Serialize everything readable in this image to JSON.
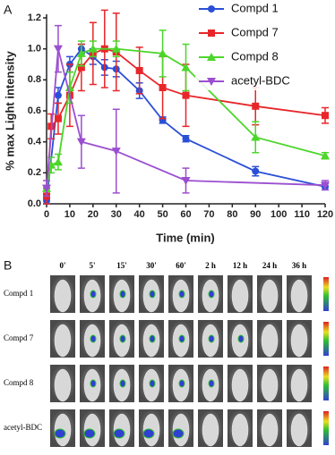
{
  "chart_data": {
    "type": "line",
    "panel_label": "A",
    "xlabel": "Time (min)",
    "ylabel": "% max Light intensity",
    "xlim": [
      0,
      120
    ],
    "xticks": [
      0,
      10,
      20,
      30,
      40,
      50,
      60,
      70,
      80,
      90,
      100,
      110,
      120
    ],
    "ylim": [
      0,
      1.2
    ],
    "yticks": [
      {
        "value": 0,
        "label": "0.0"
      },
      0.2,
      0.4,
      0.6,
      0.8,
      {
        "value": 1,
        "label": "1.0"
      },
      1.2
    ],
    "legend": "upper right",
    "series": [
      {
        "name": "Compd 1",
        "color": "#2a4fd6",
        "marker": "circle",
        "x": [
          0,
          5,
          10,
          15,
          20,
          25,
          30,
          40,
          50,
          60,
          90,
          120
        ],
        "values": [
          0.02,
          0.7,
          0.9,
          1.0,
          0.95,
          0.88,
          0.87,
          0.73,
          0.54,
          0.42,
          0.21,
          0.11
        ],
        "errors": [
          0.02,
          0.05,
          0.05,
          0.03,
          0.05,
          0.05,
          0.05,
          0.05,
          0.02,
          0.02,
          0.03,
          0.02
        ]
      },
      {
        "name": "Compd 7",
        "color": "#e8262a",
        "marker": "square",
        "x": [
          0,
          2,
          5,
          10,
          15,
          20,
          25,
          30,
          40,
          50,
          60,
          90,
          120
        ],
        "values": [
          0.05,
          0.5,
          0.55,
          0.7,
          0.88,
          0.97,
          1.0,
          0.98,
          0.86,
          0.75,
          0.7,
          0.63,
          0.57
        ],
        "errors": [
          0.05,
          0.08,
          0.1,
          0.2,
          0.15,
          0.2,
          0.25,
          0.25,
          0.15,
          0.2,
          0.2,
          0.12,
          0.05
        ]
      },
      {
        "name": "Compd 8",
        "color": "#4cd62a",
        "marker": "triangle",
        "x": [
          0,
          2,
          5,
          10,
          15,
          20,
          30,
          50,
          60,
          90,
          120
        ],
        "values": [
          0.1,
          0.25,
          0.27,
          0.75,
          0.97,
          1.0,
          1.0,
          0.97,
          0.88,
          0.43,
          0.31
        ],
        "errors": [
          0.02,
          0.05,
          0.05,
          0.1,
          0.08,
          0.05,
          0.05,
          0.15,
          0.15,
          0.1,
          0.02
        ]
      },
      {
        "name": "acetyl-BDC",
        "color": "#9b4fd0",
        "marker": "triangle-down",
        "x": [
          0,
          5,
          15,
          30,
          60,
          120
        ],
        "values": [
          0.1,
          1.0,
          0.4,
          0.34,
          0.15,
          0.12
        ],
        "errors": [
          0.05,
          0.15,
          0.17,
          0.27,
          0.08,
          0.03
        ]
      }
    ]
  },
  "panel_b": {
    "label": "B",
    "columns": [
      "0'",
      "5'",
      "15'",
      "30'",
      "60'",
      "2 h",
      "12 h",
      "24 h",
      "36 h"
    ],
    "rows": [
      "Compd 1",
      "Compd 7",
      "Compd 8",
      "acetyl-BDC"
    ]
  }
}
